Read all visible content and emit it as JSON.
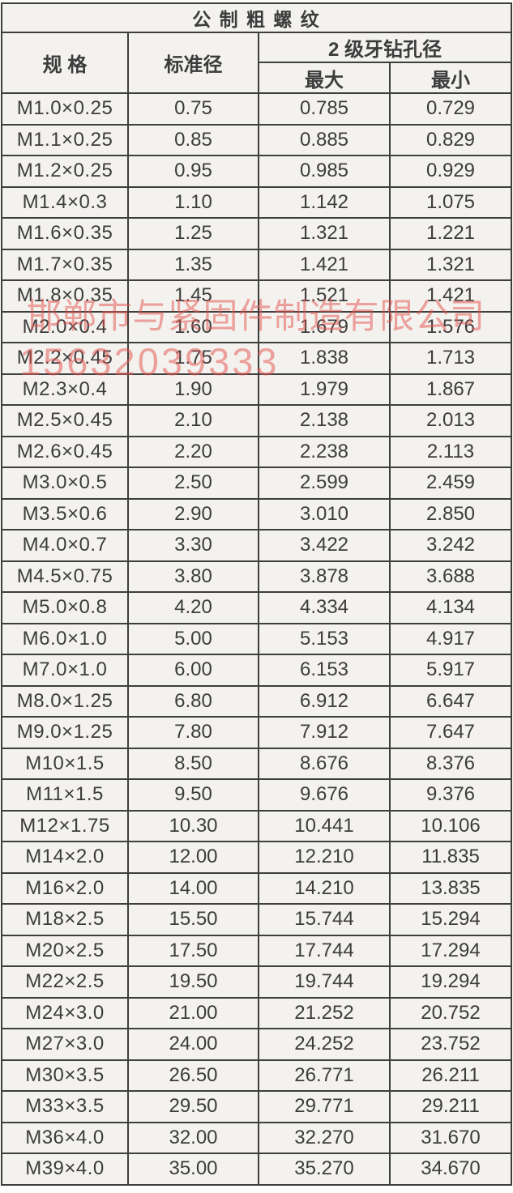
{
  "title": "公 制 粗 螺 纹",
  "watermark": {
    "company": "邯郸市与紧固件制造有限公司",
    "phone": "15632039333",
    "color": "#e4544e"
  },
  "table": {
    "headers": {
      "spec": "规 格",
      "standard_diameter": "标准径",
      "drill_group": "2 级牙钻孔径",
      "max": "最大",
      "min": "最小"
    },
    "rows": [
      [
        "M1.0×0.25",
        "0.75",
        "0.785",
        "0.729"
      ],
      [
        "M1.1×0.25",
        "0.85",
        "0.885",
        "0.829"
      ],
      [
        "M1.2×0.25",
        "0.95",
        "0.985",
        "0.929"
      ],
      [
        "M1.4×0.3",
        "1.10",
        "1.142",
        "1.075"
      ],
      [
        "M1.6×0.35",
        "1.25",
        "1.321",
        "1.221"
      ],
      [
        "M1.7×0.35",
        "1.35",
        "1.421",
        "1.321"
      ],
      [
        "M1.8×0.35",
        "1.45",
        "1.521",
        "1.421"
      ],
      [
        "M2.0×0.4",
        "1.60",
        "1.679",
        "1.576"
      ],
      [
        "M2.2×0.45",
        "1.75",
        "1.838",
        "1.713"
      ],
      [
        "M2.3×0.4",
        "1.90",
        "1.979",
        "1.867"
      ],
      [
        "M2.5×0.45",
        "2.10",
        "2.138",
        "2.013"
      ],
      [
        "M2.6×0.45",
        "2.20",
        "2.238",
        "2.113"
      ],
      [
        "M3.0×0.5",
        "2.50",
        "2.599",
        "2.459"
      ],
      [
        "M3.5×0.6",
        "2.90",
        "3.010",
        "2.850"
      ],
      [
        "M4.0×0.7",
        "3.30",
        "3.422",
        "3.242"
      ],
      [
        "M4.5×0.75",
        "3.80",
        "3.878",
        "3.688"
      ],
      [
        "M5.0×0.8",
        "4.20",
        "4.334",
        "4.134"
      ],
      [
        "M6.0×1.0",
        "5.00",
        "5.153",
        "4.917"
      ],
      [
        "M7.0×1.0",
        "6.00",
        "6.153",
        "5.917"
      ],
      [
        "M8.0×1.25",
        "6.80",
        "6.912",
        "6.647"
      ],
      [
        "M9.0×1.25",
        "7.80",
        "7.912",
        "7.647"
      ],
      [
        "M10×1.5",
        "8.50",
        "8.676",
        "8.376"
      ],
      [
        "M11×1.5",
        "9.50",
        "9.676",
        "9.376"
      ],
      [
        "M12×1.75",
        "10.30",
        "10.441",
        "10.106"
      ],
      [
        "M14×2.0",
        "12.00",
        "12.210",
        "11.835"
      ],
      [
        "M16×2.0",
        "14.00",
        "14.210",
        "13.835"
      ],
      [
        "M18×2.5",
        "15.50",
        "15.744",
        "15.294"
      ],
      [
        "M20×2.5",
        "17.50",
        "17.744",
        "17.294"
      ],
      [
        "M22×2.5",
        "19.50",
        "19.744",
        "19.294"
      ],
      [
        "M24×3.0",
        "21.00",
        "21.252",
        "20.752"
      ],
      [
        "M27×3.0",
        "24.00",
        "24.252",
        "23.752"
      ],
      [
        "M30×3.5",
        "26.50",
        "26.771",
        "26.211"
      ],
      [
        "M33×3.5",
        "29.50",
        "29.771",
        "29.211"
      ],
      [
        "M36×4.0",
        "32.00",
        "32.270",
        "31.670"
      ],
      [
        "M39×4.0",
        "35.00",
        "35.270",
        "34.670"
      ]
    ]
  }
}
